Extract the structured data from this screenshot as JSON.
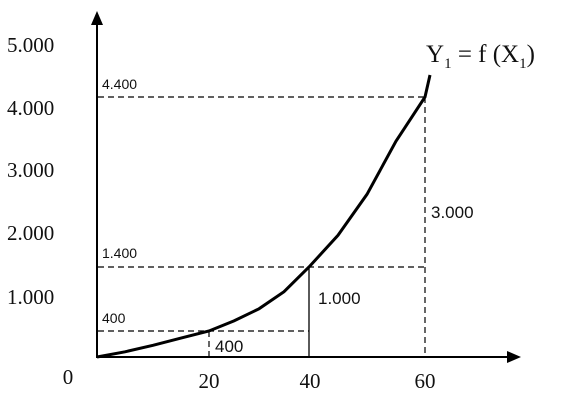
{
  "chart_data": {
    "type": "line",
    "title": "",
    "xlabel": "",
    "ylabel": "",
    "xlim": [
      0,
      60
    ],
    "ylim": [
      0,
      5000
    ],
    "origin_label": "0",
    "x_ticks": [
      {
        "value": 20,
        "label": "20"
      },
      {
        "value": 40,
        "label": "40"
      },
      {
        "value": 60,
        "label": "60"
      }
    ],
    "y_ticks": [
      {
        "value": 1000,
        "label": "1.000"
      },
      {
        "value": 2000,
        "label": "2.000"
      },
      {
        "value": 3000,
        "label": "3.000"
      },
      {
        "value": 4000,
        "label": "4.000"
      },
      {
        "value": 5000,
        "label": "5.000"
      }
    ],
    "series": [
      {
        "name": "Y1 = f (X1)",
        "x": [
          0,
          5,
          10,
          15,
          20,
          25,
          30,
          35,
          40,
          45,
          50,
          55,
          60
        ],
        "y": [
          0,
          80,
          180,
          290,
          400,
          560,
          750,
          1020,
          1400,
          1900,
          2550,
          3400,
          4400
        ]
      }
    ],
    "curve_label": {
      "main": "Y",
      "sub1": "1",
      "mid": " = f (X",
      "sub2": "1",
      "end": ")"
    },
    "guide_points": [
      {
        "x": 20,
        "y": 400,
        "y_label": "400"
      },
      {
        "x": 40,
        "y": 1400,
        "y_label": "1.400"
      },
      {
        "x": 60,
        "y": 4400,
        "y_label": "4.400"
      }
    ],
    "increments": [
      {
        "label": "400",
        "x": 20,
        "y": 400
      },
      {
        "label": "1.000",
        "x": 40,
        "y": 1400
      },
      {
        "label": "3.000",
        "x": 60,
        "y": 4400
      }
    ],
    "grid": false
  }
}
